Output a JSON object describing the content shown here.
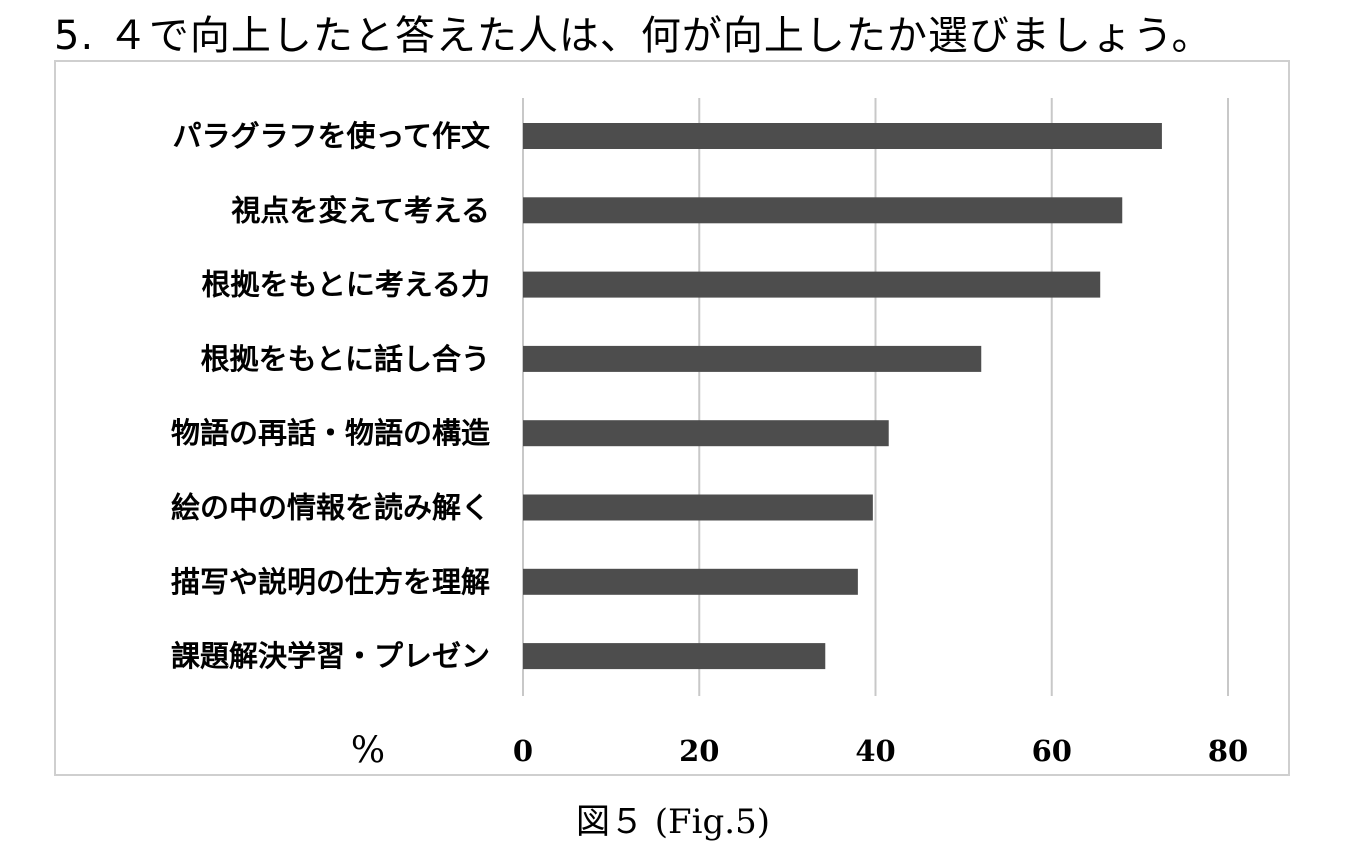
{
  "question": "5. ４で向上したと答えた人は、何が向上したか選びましょう。",
  "caption": "図５ (Fig.5)",
  "chart_data": {
    "type": "bar",
    "orientation": "horizontal",
    "categories": [
      "パラグラフを使って作文",
      "視点を変えて考える",
      "根拠をもとに考える力",
      "根拠をもとに話し合う",
      "物語の再話・物語の構造",
      "絵の中の情報を読み解く",
      "描写や説明の仕方を理解",
      "課題解決学習・プレゼン"
    ],
    "values": [
      72.5,
      68,
      65.5,
      52,
      41.5,
      39.7,
      38,
      34.3
    ],
    "xlim": [
      0,
      80
    ],
    "xticks": [
      "0",
      "20",
      "40",
      "60",
      "80"
    ],
    "xlabel": "%",
    "grid": "vertical",
    "bar_color": "#4d4d4d",
    "grid_color": "#c8c8c8"
  }
}
